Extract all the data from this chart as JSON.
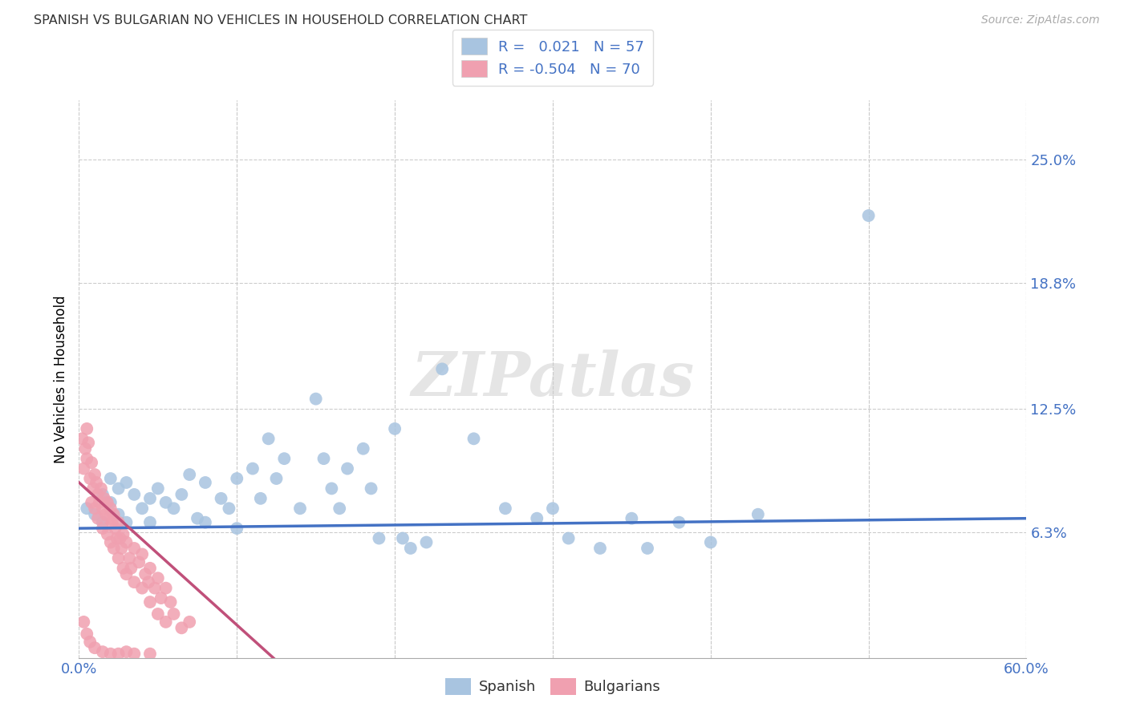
{
  "title": "SPANISH VS BULGARIAN NO VEHICLES IN HOUSEHOLD CORRELATION CHART",
  "source": "Source: ZipAtlas.com",
  "ylabel_label": "No Vehicles in Household",
  "xlim": [
    0.0,
    0.6
  ],
  "ylim": [
    0.0,
    0.28
  ],
  "xticks": [
    0.0,
    0.1,
    0.2,
    0.3,
    0.4,
    0.5,
    0.6
  ],
  "xticklabels": [
    "0.0%",
    "",
    "",
    "",
    "",
    "",
    "60.0%"
  ],
  "ytick_positions": [
    0.063,
    0.125,
    0.188,
    0.25
  ],
  "ytick_labels": [
    "6.3%",
    "12.5%",
    "18.8%",
    "25.0%"
  ],
  "spanish_color": "#a8c4e0",
  "bulgarian_color": "#f0a0b0",
  "spanish_R": 0.021,
  "spanish_N": 57,
  "bulgarian_R": -0.504,
  "bulgarian_N": 70,
  "trend_spanish_color": "#4472c4",
  "trend_bulgarian_color": "#c0507a",
  "watermark": "ZIPatlas",
  "spanish_points": [
    [
      0.005,
      0.075
    ],
    [
      0.01,
      0.072
    ],
    [
      0.015,
      0.082
    ],
    [
      0.015,
      0.068
    ],
    [
      0.02,
      0.09
    ],
    [
      0.02,
      0.078
    ],
    [
      0.025,
      0.085
    ],
    [
      0.025,
      0.072
    ],
    [
      0.03,
      0.088
    ],
    [
      0.03,
      0.068
    ],
    [
      0.035,
      0.082
    ],
    [
      0.04,
      0.075
    ],
    [
      0.045,
      0.08
    ],
    [
      0.045,
      0.068
    ],
    [
      0.05,
      0.085
    ],
    [
      0.055,
      0.078
    ],
    [
      0.06,
      0.075
    ],
    [
      0.065,
      0.082
    ],
    [
      0.07,
      0.092
    ],
    [
      0.075,
      0.07
    ],
    [
      0.08,
      0.088
    ],
    [
      0.08,
      0.068
    ],
    [
      0.09,
      0.08
    ],
    [
      0.095,
      0.075
    ],
    [
      0.1,
      0.09
    ],
    [
      0.1,
      0.065
    ],
    [
      0.11,
      0.095
    ],
    [
      0.115,
      0.08
    ],
    [
      0.12,
      0.11
    ],
    [
      0.125,
      0.09
    ],
    [
      0.13,
      0.1
    ],
    [
      0.14,
      0.075
    ],
    [
      0.15,
      0.13
    ],
    [
      0.155,
      0.1
    ],
    [
      0.16,
      0.085
    ],
    [
      0.165,
      0.075
    ],
    [
      0.17,
      0.095
    ],
    [
      0.18,
      0.105
    ],
    [
      0.185,
      0.085
    ],
    [
      0.19,
      0.06
    ],
    [
      0.2,
      0.115
    ],
    [
      0.205,
      0.06
    ],
    [
      0.21,
      0.055
    ],
    [
      0.22,
      0.058
    ],
    [
      0.23,
      0.145
    ],
    [
      0.25,
      0.11
    ],
    [
      0.27,
      0.075
    ],
    [
      0.29,
      0.07
    ],
    [
      0.3,
      0.075
    ],
    [
      0.31,
      0.06
    ],
    [
      0.33,
      0.055
    ],
    [
      0.35,
      0.07
    ],
    [
      0.36,
      0.055
    ],
    [
      0.38,
      0.068
    ],
    [
      0.4,
      0.058
    ],
    [
      0.43,
      0.072
    ],
    [
      0.5,
      0.222
    ]
  ],
  "bulgarian_points": [
    [
      0.002,
      0.11
    ],
    [
      0.003,
      0.095
    ],
    [
      0.004,
      0.105
    ],
    [
      0.005,
      0.115
    ],
    [
      0.005,
      0.1
    ],
    [
      0.006,
      0.108
    ],
    [
      0.007,
      0.09
    ],
    [
      0.008,
      0.098
    ],
    [
      0.008,
      0.078
    ],
    [
      0.009,
      0.085
    ],
    [
      0.01,
      0.092
    ],
    [
      0.01,
      0.075
    ],
    [
      0.011,
      0.088
    ],
    [
      0.012,
      0.082
    ],
    [
      0.012,
      0.07
    ],
    [
      0.013,
      0.078
    ],
    [
      0.014,
      0.085
    ],
    [
      0.015,
      0.075
    ],
    [
      0.015,
      0.065
    ],
    [
      0.016,
      0.08
    ],
    [
      0.017,
      0.072
    ],
    [
      0.018,
      0.078
    ],
    [
      0.018,
      0.062
    ],
    [
      0.019,
      0.07
    ],
    [
      0.02,
      0.075
    ],
    [
      0.02,
      0.058
    ],
    [
      0.021,
      0.068
    ],
    [
      0.022,
      0.072
    ],
    [
      0.022,
      0.055
    ],
    [
      0.023,
      0.065
    ],
    [
      0.024,
      0.06
    ],
    [
      0.025,
      0.068
    ],
    [
      0.025,
      0.05
    ],
    [
      0.026,
      0.06
    ],
    [
      0.027,
      0.055
    ],
    [
      0.028,
      0.062
    ],
    [
      0.028,
      0.045
    ],
    [
      0.03,
      0.058
    ],
    [
      0.03,
      0.042
    ],
    [
      0.032,
      0.05
    ],
    [
      0.033,
      0.045
    ],
    [
      0.035,
      0.055
    ],
    [
      0.035,
      0.038
    ],
    [
      0.038,
      0.048
    ],
    [
      0.04,
      0.052
    ],
    [
      0.04,
      0.035
    ],
    [
      0.042,
      0.042
    ],
    [
      0.044,
      0.038
    ],
    [
      0.045,
      0.045
    ],
    [
      0.045,
      0.028
    ],
    [
      0.048,
      0.035
    ],
    [
      0.05,
      0.04
    ],
    [
      0.05,
      0.022
    ],
    [
      0.052,
      0.03
    ],
    [
      0.055,
      0.035
    ],
    [
      0.055,
      0.018
    ],
    [
      0.058,
      0.028
    ],
    [
      0.06,
      0.022
    ],
    [
      0.065,
      0.015
    ],
    [
      0.07,
      0.018
    ],
    [
      0.003,
      0.018
    ],
    [
      0.005,
      0.012
    ],
    [
      0.007,
      0.008
    ],
    [
      0.01,
      0.005
    ],
    [
      0.015,
      0.003
    ],
    [
      0.02,
      0.002
    ],
    [
      0.025,
      0.002
    ],
    [
      0.03,
      0.003
    ],
    [
      0.035,
      0.002
    ],
    [
      0.045,
      0.002
    ]
  ]
}
